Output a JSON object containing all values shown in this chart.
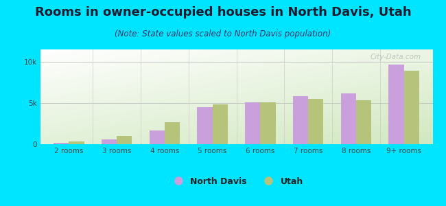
{
  "title": "Rooms in owner-occupied houses in North Davis, Utah",
  "subtitle": "(Note: State values scaled to North Davis population)",
  "categories": [
    "2 rooms",
    "3 rooms",
    "4 rooms",
    "5 rooms",
    "6 rooms",
    "7 rooms",
    "8 rooms",
    "9+ rooms"
  ],
  "north_davis": [
    150,
    600,
    1700,
    4500,
    5100,
    5800,
    6200,
    9700
  ],
  "utah": [
    350,
    1000,
    2700,
    4800,
    5100,
    5500,
    5300,
    8900
  ],
  "north_davis_color": "#c9a0dc",
  "utah_color": "#b5c47a",
  "background_color": "#00e5ff",
  "ylim": [
    0,
    11500
  ],
  "yticks": [
    0,
    5000,
    10000
  ],
  "ytick_labels": [
    "0",
    "5k",
    "10k"
  ],
  "bar_width": 0.32,
  "title_fontsize": 13,
  "subtitle_fontsize": 8.5,
  "title_color": "#1a1a2e",
  "subtitle_color": "#333366",
  "tick_color": "#444444",
  "legend_labels": [
    "North Davis",
    "Utah"
  ],
  "watermark": "City-Data.com"
}
